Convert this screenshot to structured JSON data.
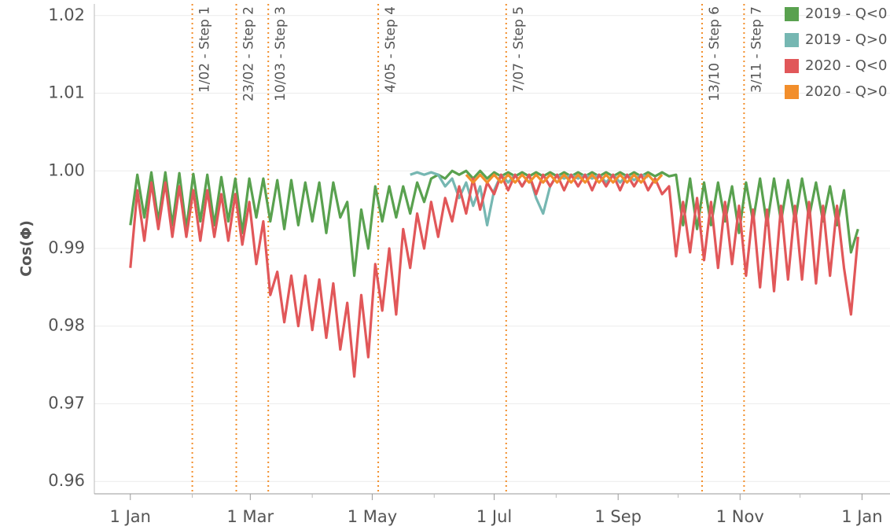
{
  "chart_data": {
    "type": "line",
    "y_label": "Cos(Φ)",
    "xlim": [
      -18,
      380
    ],
    "ylim": [
      0.9584,
      1.0215
    ],
    "xticks": [
      {
        "value": 0,
        "label": "1 Jan"
      },
      {
        "value": 60,
        "label": "1 Mar"
      },
      {
        "value": 121,
        "label": "1 May"
      },
      {
        "value": 182,
        "label": "1 Jul"
      },
      {
        "value": 244,
        "label": "1 Sep"
      },
      {
        "value": 305,
        "label": "1 Nov"
      },
      {
        "value": 366,
        "label": "1 Jan"
      }
    ],
    "xminor_ticks": [
      31,
      91,
      152,
      213,
      274,
      335
    ],
    "yticks": [
      0.96,
      0.97,
      0.98,
      0.99,
      {
        "value": 1,
        "label": "1.00"
      },
      1.01,
      1.02
    ],
    "grid": true,
    "legend": "top-right",
    "annotations": [
      {
        "x": 31,
        "label": "1/02 - Step 1"
      },
      {
        "x": 53,
        "label": "23/02 - Step 2"
      },
      {
        "x": 69,
        "label": "10/03 - Step 3"
      },
      {
        "x": 124,
        "label": "4/05 - Step 4"
      },
      {
        "x": 188,
        "label": "7/07 - Step 5"
      },
      {
        "x": 286,
        "label": "13/10 - Step 6"
      },
      {
        "x": 307,
        "label": "3/11 - Step 7"
      }
    ],
    "annotation_color": "#f28e2b",
    "x": [
      0,
      3.5,
      7,
      10.5,
      14,
      17.5,
      21,
      24.5,
      28,
      31.5,
      35,
      38.5,
      42,
      45.5,
      49,
      52.5,
      56,
      59.5,
      63,
      66.5,
      70,
      73.5,
      77,
      80.5,
      84,
      87.5,
      91,
      94.5,
      98,
      101.5,
      105,
      108.5,
      112,
      115.5,
      119,
      122.5,
      126,
      129.5,
      133,
      136.5,
      140,
      143.5,
      147,
      150.5,
      154,
      157.5,
      161,
      164.5,
      168,
      171.5,
      175,
      178.5,
      182,
      185.5,
      189,
      192.5,
      196,
      199.5,
      203,
      206.5,
      210,
      213.5,
      217,
      220.5,
      224,
      227.5,
      231,
      234.5,
      238,
      241.5,
      245,
      248.5,
      252,
      255.5,
      259,
      262.5,
      266,
      269.5,
      273,
      276.5,
      280,
      283.5,
      287,
      290.5,
      294,
      297.5,
      301,
      304.5,
      308,
      311.5,
      315,
      318.5,
      322,
      325.5,
      329,
      332.5,
      336,
      339.5,
      343,
      346.5,
      350,
      353.5,
      357,
      360.5,
      364
    ],
    "series": [
      {
        "name": "2019 - Q<0",
        "color": "#59a14f",
        "values": [
          0.993,
          0.9995,
          0.994,
          0.9998,
          0.9935,
          0.9998,
          0.993,
          0.9997,
          0.9925,
          0.9996,
          0.9935,
          0.9995,
          0.993,
          0.9992,
          0.9935,
          0.999,
          0.992,
          0.999,
          0.994,
          0.999,
          0.9935,
          0.9988,
          0.9925,
          0.9988,
          0.993,
          0.9985,
          0.9935,
          0.9985,
          0.992,
          0.9985,
          0.994,
          0.996,
          0.9865,
          0.995,
          0.99,
          0.998,
          0.9935,
          0.998,
          0.994,
          0.998,
          0.9945,
          0.9985,
          0.996,
          0.999,
          0.9995,
          0.999,
          1.0,
          0.9995,
          1.0,
          0.999,
          1.0,
          0.999,
          0.9998,
          0.9993,
          0.9998,
          0.9993,
          0.9998,
          0.9993,
          0.9998,
          0.9993,
          0.9998,
          0.9993,
          0.9998,
          0.9993,
          0.9998,
          0.9993,
          0.9998,
          0.9993,
          0.9998,
          0.9993,
          0.9998,
          0.9993,
          0.9998,
          0.9993,
          0.9998,
          0.9993,
          0.9998,
          0.9993,
          0.9995,
          0.993,
          0.999,
          0.9925,
          0.9985,
          0.993,
          0.9985,
          0.9935,
          0.998,
          0.992,
          0.9985,
          0.9935,
          0.999,
          0.993,
          0.999,
          0.9935,
          0.9988,
          0.9935,
          0.999,
          0.994,
          0.9985,
          0.9935,
          0.998,
          0.993,
          0.9975,
          0.9895,
          0.9925
        ]
      },
      {
        "name": "2019 - Q>0",
        "color": "#76b7b2",
        "values": [
          null,
          null,
          null,
          null,
          null,
          null,
          null,
          null,
          null,
          null,
          null,
          null,
          null,
          null,
          null,
          null,
          null,
          null,
          null,
          null,
          null,
          null,
          null,
          null,
          null,
          null,
          null,
          null,
          null,
          null,
          null,
          null,
          null,
          null,
          null,
          null,
          null,
          null,
          null,
          null,
          0.9995,
          0.9998,
          0.9995,
          0.9998,
          0.9995,
          0.998,
          0.999,
          0.9965,
          0.9985,
          0.9955,
          0.998,
          0.993,
          0.9975,
          0.9995,
          0.9985,
          0.9995,
          0.998,
          0.9995,
          0.9965,
          0.9945,
          0.998,
          0.9995,
          0.999,
          0.9995,
          0.999,
          0.9995,
          0.999,
          0.9995,
          0.9985,
          0.9995,
          0.9985,
          0.9995,
          0.9988,
          0.9995,
          0.9992,
          null,
          null,
          null,
          null,
          null,
          null,
          null,
          null,
          null,
          null,
          null,
          null,
          null,
          null,
          null,
          null,
          null,
          null,
          null,
          null,
          null,
          null,
          null,
          null,
          null,
          null,
          null,
          null,
          null,
          null
        ]
      },
      {
        "name": "2020 - Q<0",
        "color": "#e15759",
        "values": [
          0.9875,
          0.9975,
          0.991,
          0.9985,
          0.9925,
          0.9985,
          0.9915,
          0.998,
          0.9915,
          0.9975,
          0.991,
          0.9975,
          0.9915,
          0.997,
          0.991,
          0.997,
          0.9905,
          0.996,
          0.988,
          0.9935,
          0.984,
          0.987,
          0.9805,
          0.9865,
          0.98,
          0.9865,
          0.9795,
          0.986,
          0.9785,
          0.9855,
          0.977,
          0.983,
          0.9735,
          0.984,
          0.976,
          0.988,
          0.982,
          0.99,
          0.9815,
          0.9925,
          0.9875,
          0.9945,
          0.99,
          0.996,
          0.9915,
          0.9965,
          0.9935,
          0.998,
          0.9945,
          0.999,
          0.995,
          0.9985,
          0.997,
          0.9995,
          0.9975,
          0.9995,
          0.998,
          0.9995,
          0.997,
          0.9995,
          0.998,
          0.9995,
          0.9975,
          0.9995,
          0.998,
          0.9995,
          0.9975,
          0.9995,
          0.998,
          0.9995,
          0.9975,
          0.9995,
          0.998,
          0.9995,
          0.9975,
          0.999,
          0.997,
          0.998,
          0.989,
          0.996,
          0.9895,
          0.9965,
          0.9885,
          0.996,
          0.9875,
          0.996,
          0.988,
          0.9955,
          0.9865,
          0.995,
          0.985,
          0.995,
          0.9845,
          0.9955,
          0.986,
          0.9955,
          0.986,
          0.996,
          0.9855,
          0.9955,
          0.9865,
          0.9955,
          0.9875,
          0.9815,
          0.9915
        ]
      },
      {
        "name": "2020 - Q>0",
        "color": "#f28e2b",
        "values": [
          null,
          null,
          null,
          null,
          null,
          null,
          null,
          null,
          null,
          null,
          null,
          null,
          null,
          null,
          null,
          null,
          null,
          null,
          null,
          null,
          null,
          null,
          null,
          null,
          null,
          null,
          null,
          null,
          null,
          null,
          null,
          null,
          null,
          null,
          null,
          null,
          null,
          null,
          null,
          null,
          null,
          null,
          null,
          null,
          null,
          null,
          null,
          null,
          0.9995,
          0.9985,
          0.9995,
          0.9985,
          0.9995,
          0.9985,
          0.9995,
          0.9985,
          0.9995,
          0.9985,
          0.9995,
          0.9985,
          0.9995,
          0.9985,
          0.9995,
          0.9985,
          0.9995,
          0.9985,
          0.9995,
          0.9985,
          0.9995,
          0.9985,
          0.9995,
          0.9985,
          0.9995,
          0.9985,
          0.9995,
          0.9985,
          0.9995,
          null,
          null,
          null,
          null,
          null,
          null,
          null,
          null,
          null,
          null,
          null,
          null,
          null,
          null,
          null,
          null,
          null,
          null,
          null,
          null,
          null,
          null,
          null,
          null,
          null,
          null,
          null,
          null
        ]
      }
    ]
  }
}
